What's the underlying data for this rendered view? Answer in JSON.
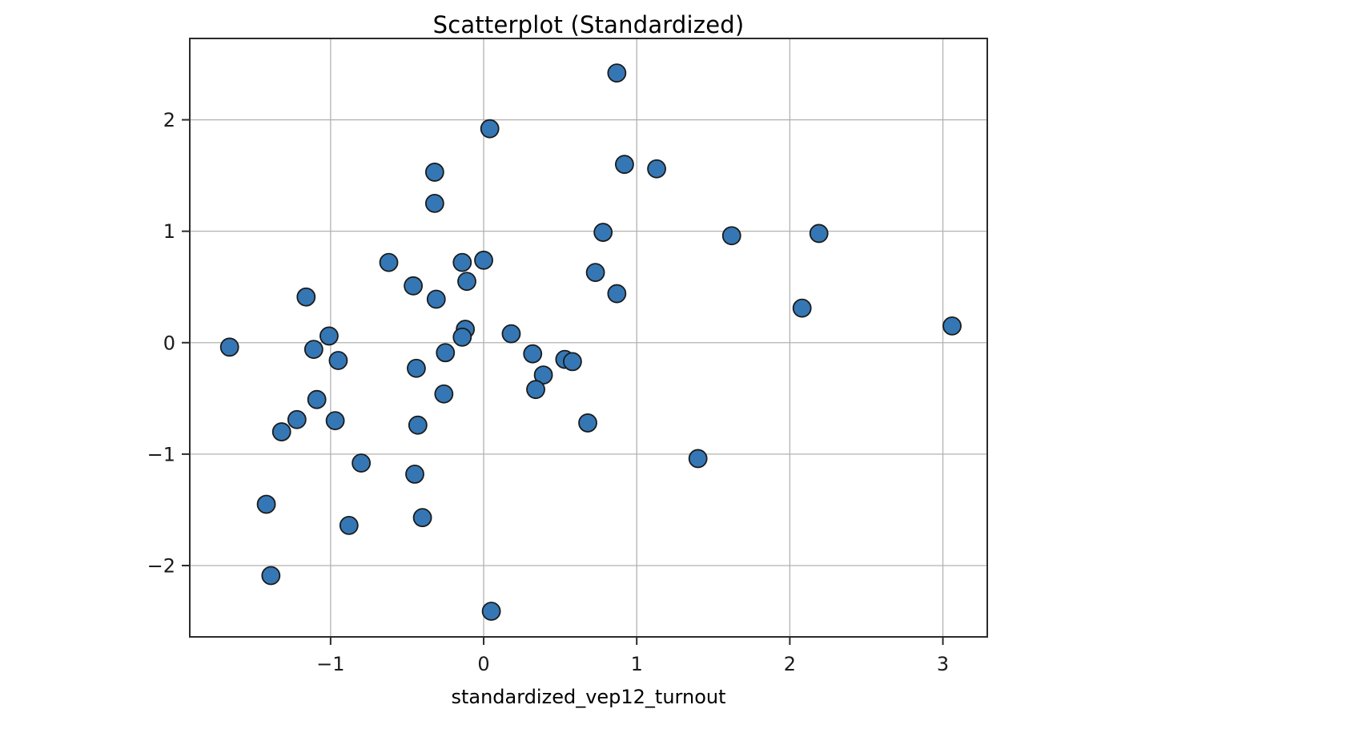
{
  "chart_data": {
    "type": "scatter",
    "title": "Scatterplot (Standardized)",
    "xlabel": "standardized_vep12_turnout",
    "ylabel": "",
    "xlim": [
      -1.92,
      3.29
    ],
    "ylim": [
      -2.64,
      2.73
    ],
    "xticks": [
      -1,
      0,
      1,
      2,
      3
    ],
    "xtick_labels": [
      "−1",
      "0",
      "1",
      "2",
      "3"
    ],
    "yticks": [
      -2,
      -1,
      0,
      1,
      2
    ],
    "ytick_labels": [
      "−2",
      "−1",
      "0",
      "1",
      "2"
    ],
    "grid": true,
    "legend": null,
    "marker": {
      "shape": "circle",
      "radius": 11,
      "fill": "#3577b4",
      "edge": "#1b1b1b",
      "edge_width": 1.8
    },
    "colors": {
      "grid": "#b2b2b2",
      "spine": "#2b2b2b",
      "text": "#1a1a1a",
      "background": "#ffffff"
    },
    "points": [
      [
        0.04,
        1.92
      ],
      [
        -0.32,
        1.53
      ],
      [
        -0.32,
        1.25
      ],
      [
        -0.62,
        0.72
      ],
      [
        -0.46,
        0.51
      ],
      [
        -0.31,
        0.39
      ],
      [
        -0.14,
        0.72
      ],
      [
        0.0,
        0.74
      ],
      [
        -0.11,
        0.55
      ],
      [
        -1.16,
        0.41
      ],
      [
        0.73,
        0.63
      ],
      [
        -1.01,
        0.06
      ],
      [
        -0.12,
        0.12
      ],
      [
        -0.14,
        0.05
      ],
      [
        0.18,
        0.08
      ],
      [
        0.87,
        2.42
      ],
      [
        0.92,
        1.6
      ],
      [
        1.13,
        1.56
      ],
      [
        0.78,
        0.99
      ],
      [
        1.62,
        0.96
      ],
      [
        2.19,
        0.98
      ],
      [
        0.87,
        0.44
      ],
      [
        2.08,
        0.31
      ],
      [
        3.06,
        0.15
      ],
      [
        -1.66,
        -0.04
      ],
      [
        -1.11,
        -0.06
      ],
      [
        -0.95,
        -0.16
      ],
      [
        -0.44,
        -0.23
      ],
      [
        -0.26,
        -0.46
      ],
      [
        -1.32,
        -0.8
      ],
      [
        -1.22,
        -0.69
      ],
      [
        -1.09,
        -0.51
      ],
      [
        -0.97,
        -0.7
      ],
      [
        -0.43,
        -0.74
      ],
      [
        -0.8,
        -1.08
      ],
      [
        -0.45,
        -1.18
      ],
      [
        -1.42,
        -1.45
      ],
      [
        -0.88,
        -1.64
      ],
      [
        -0.4,
        -1.57
      ],
      [
        -1.39,
        -2.09
      ],
      [
        0.05,
        -2.41
      ],
      [
        0.32,
        -0.1
      ],
      [
        0.39,
        -0.29
      ],
      [
        0.34,
        -0.42
      ],
      [
        -0.25,
        -0.09
      ],
      [
        0.53,
        -0.15
      ],
      [
        0.58,
        -0.17
      ],
      [
        0.68,
        -0.72
      ],
      [
        1.4,
        -1.04
      ]
    ]
  }
}
